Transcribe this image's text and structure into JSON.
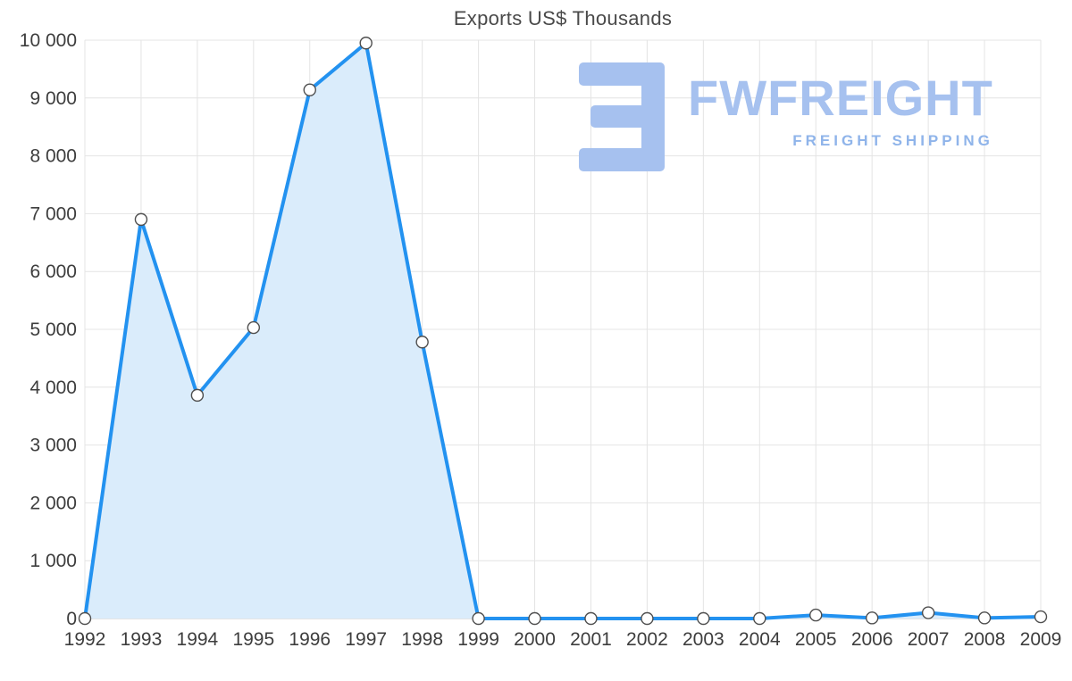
{
  "title": "Exports US$ Thousands",
  "watermark": {
    "brand": "FWFREIGHT",
    "tagline": "FREIGHT SHIPPING"
  },
  "colors": {
    "line": "#2392f0",
    "fill": "#daecfb",
    "grid": "#e4e4e4",
    "axis": "#c9c9c9",
    "tick_text": "#3d3d3d",
    "marker_fill": "#ffffff",
    "marker_stroke": "#4f4f4f",
    "watermark_blue": "#a6c1ef"
  },
  "chart_data": {
    "type": "area",
    "title": "Exports US$ Thousands",
    "x": [
      1992,
      1993,
      1994,
      1995,
      1996,
      1997,
      1998,
      1999,
      2000,
      2001,
      2002,
      2003,
      2004,
      2005,
      2006,
      2007,
      2008,
      2009
    ],
    "values": [
      0,
      6900,
      3860,
      5030,
      9140,
      9950,
      4780,
      0,
      0,
      0,
      0,
      0,
      0,
      60,
      10,
      100,
      10,
      30
    ],
    "series_name": "Exports US$ Thousands",
    "xlabel": "",
    "ylabel": "",
    "ylim": [
      0,
      10000
    ],
    "yticks": [
      0,
      1000,
      2000,
      3000,
      4000,
      5000,
      6000,
      7000,
      8000,
      9000,
      10000
    ],
    "ytick_labels": [
      "0",
      "1 000",
      "2 000",
      "3 000",
      "4 000",
      "5 000",
      "6 000",
      "7 000",
      "8 000",
      "9 000",
      "10 000"
    ],
    "grid": true,
    "legend": "none"
  }
}
